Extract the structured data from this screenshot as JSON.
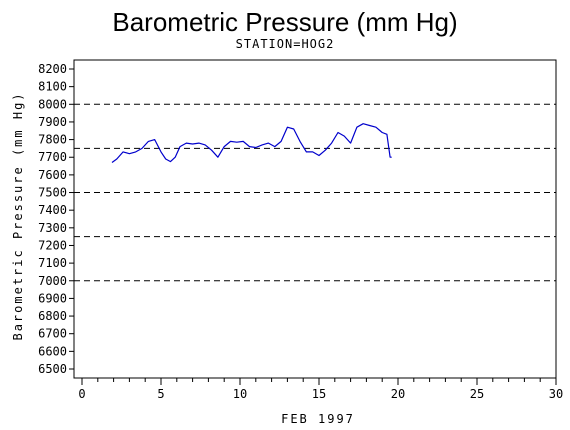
{
  "chart_data": {
    "type": "line",
    "title": "Barometric Pressure (mm Hg)",
    "subtitle": "STATION=HOG2",
    "xlabel": "FEB 1997",
    "ylabel": "Barometric Pressure (mm Hg)",
    "xlim": [
      0,
      30
    ],
    "ylim": [
      6500,
      8200
    ],
    "xticks": [
      0,
      5,
      10,
      15,
      20,
      25,
      30
    ],
    "yticks": [
      6500,
      6600,
      6700,
      6800,
      6900,
      7000,
      7100,
      7200,
      7300,
      7400,
      7500,
      7600,
      7700,
      7800,
      7900,
      8000,
      8100,
      8200
    ],
    "reference_lines": [
      7000,
      7250,
      7500,
      7750,
      8000
    ],
    "line_color": "#0000cc",
    "series": [
      {
        "x": [
          1.9,
          2.2,
          2.6,
          3.0,
          3.4,
          3.8,
          4.2,
          4.6,
          5.0,
          5.3,
          5.6,
          5.9,
          6.2,
          6.6,
          7.0,
          7.4,
          7.8,
          8.2,
          8.6,
          9.0,
          9.4,
          9.8,
          10.2,
          10.6,
          11.0,
          11.4,
          11.8,
          12.2,
          12.6,
          13.0,
          13.4,
          13.8,
          14.2,
          14.6,
          15.0,
          15.4,
          15.8,
          16.2,
          16.6,
          17.0,
          17.4,
          17.8,
          18.2,
          18.6,
          19.0,
          19.3,
          19.5,
          19.6
        ],
        "y": [
          7670,
          7690,
          7730,
          7720,
          7730,
          7750,
          7790,
          7800,
          7730,
          7690,
          7675,
          7700,
          7760,
          7780,
          7775,
          7780,
          7770,
          7740,
          7700,
          7760,
          7790,
          7785,
          7790,
          7760,
          7755,
          7770,
          7780,
          7760,
          7790,
          7870,
          7860,
          7790,
          7730,
          7730,
          7710,
          7740,
          7780,
          7840,
          7820,
          7780,
          7870,
          7890,
          7880,
          7870,
          7840,
          7830,
          7700,
          7700
        ]
      }
    ]
  }
}
